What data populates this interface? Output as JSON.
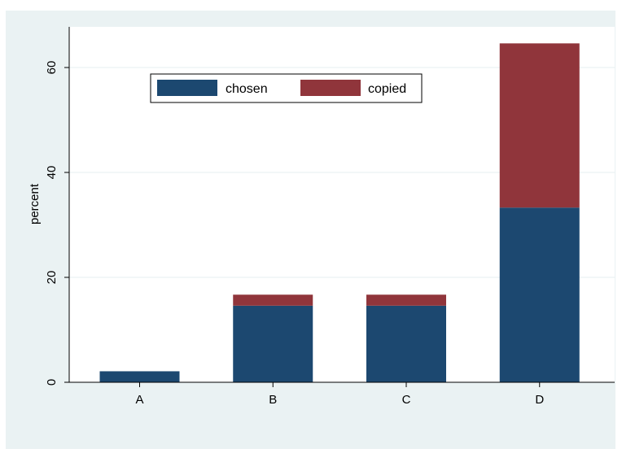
{
  "chart_data": {
    "type": "bar",
    "stacked": true,
    "categories": [
      "A",
      "B",
      "C",
      "D"
    ],
    "series": [
      {
        "name": "chosen",
        "color": "#1c4870",
        "values": [
          2.1,
          14.6,
          14.6,
          33.3
        ]
      },
      {
        "name": "copied",
        "color": "#90353b",
        "values": [
          0,
          2.1,
          2.1,
          31.3
        ]
      }
    ],
    "ylabel": "percent",
    "yticks": [
      0,
      20,
      40,
      60
    ],
    "ylim": [
      0,
      67.6
    ],
    "grid": true,
    "legend": {
      "placement": "top-left inside",
      "entries": [
        "chosen",
        "copied"
      ]
    },
    "colors": {
      "background": "#eaf2f3",
      "plot_area": "#ffffff",
      "gridline": "#eaf2f3"
    }
  }
}
